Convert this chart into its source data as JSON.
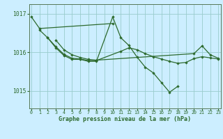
{
  "background_color": "#cceeff",
  "grid_color": "#99cccc",
  "line_color": "#2d6a2d",
  "marker_color": "#2d6a2d",
  "title": "Graphe pression niveau de la mer (hPa)",
  "yticks": [
    1015,
    1016,
    1017
  ],
  "xticks": [
    0,
    1,
    2,
    3,
    4,
    5,
    6,
    7,
    8,
    9,
    10,
    11,
    12,
    13,
    14,
    15,
    16,
    17,
    18,
    19,
    20,
    21,
    22,
    23
  ],
  "xlim": [
    -0.3,
    23.3
  ],
  "ylim": [
    1014.55,
    1017.25
  ],
  "series": [
    [
      0,
      1016.92,
      1,
      1016.62,
      10,
      1016.75
    ],
    [
      1,
      1016.58,
      2,
      1016.38,
      3,
      1016.15,
      4,
      1015.95,
      5,
      1015.85,
      6,
      1015.83,
      7,
      1015.79,
      8,
      1015.79,
      11,
      1016.03,
      12,
      1016.12,
      13,
      1016.07,
      14,
      1015.97,
      15,
      1015.89,
      16,
      1015.83,
      17,
      1015.77,
      18,
      1015.72,
      19,
      1015.74,
      20,
      1015.84,
      21,
      1015.89,
      22,
      1015.86,
      23,
      1015.83
    ],
    [
      2,
      1016.38,
      3,
      1016.12,
      4,
      1015.92,
      5,
      1015.82,
      6,
      1015.82,
      7,
      1015.77,
      8,
      1015.77,
      10,
      1016.92,
      11,
      1016.38,
      12,
      1016.18,
      13,
      1015.88,
      14,
      1015.62,
      15,
      1015.47,
      16,
      1015.22,
      17,
      1014.97,
      18,
      1015.12
    ],
    [
      3,
      1016.32,
      4,
      1016.07,
      5,
      1015.94,
      6,
      1015.87,
      7,
      1015.82,
      8,
      1015.8,
      20,
      1015.97,
      21,
      1016.17,
      22,
      1015.94,
      23,
      1015.85
    ]
  ]
}
